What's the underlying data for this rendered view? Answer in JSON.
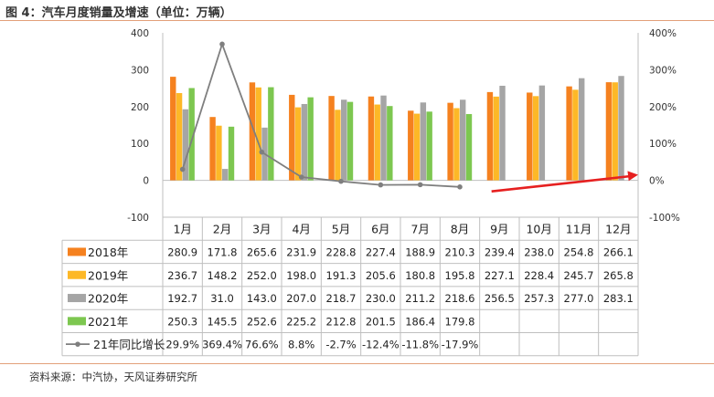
{
  "figure": {
    "title": "图 4：汽车月度销量及增速（单位：万辆）",
    "source": "资料来源：中汽协，天风证券研究所"
  },
  "chart_data": {
    "type": "bar",
    "categories": [
      "1月",
      "2月",
      "3月",
      "4月",
      "5月",
      "6月",
      "7月",
      "8月",
      "9月",
      "10月",
      "11月",
      "12月"
    ],
    "series": [
      {
        "name": "2018年",
        "type": "bar",
        "color": "#f5811f",
        "values": [
          280.9,
          171.8,
          265.6,
          231.9,
          228.8,
          227.4,
          188.9,
          210.3,
          239.4,
          238.0,
          254.8,
          266.1
        ],
        "labels": [
          "280.9",
          "171.8",
          "265.6",
          "231.9",
          "228.8",
          "227.4",
          "188.9",
          "210.3",
          "239.4",
          "238.0",
          "254.8",
          "266.1"
        ]
      },
      {
        "name": "2019年",
        "type": "bar",
        "color": "#fdb827",
        "values": [
          236.7,
          148.2,
          252.0,
          198.0,
          191.3,
          205.6,
          180.8,
          195.8,
          227.1,
          228.4,
          245.7,
          265.8
        ],
        "labels": [
          "236.7",
          "148.2",
          "252.0",
          "198.0",
          "191.3",
          "205.6",
          "180.8",
          "195.8",
          "227.1",
          "228.4",
          "245.7",
          "265.8"
        ]
      },
      {
        "name": "2020年",
        "type": "bar",
        "color": "#a5a5a5",
        "values": [
          192.7,
          31.0,
          143.0,
          207.0,
          218.7,
          230.0,
          211.2,
          218.6,
          256.5,
          257.3,
          277.0,
          283.1
        ],
        "labels": [
          "192.7",
          "31.0",
          "143.0",
          "207.0",
          "218.7",
          "230.0",
          "211.2",
          "218.6",
          "256.5",
          "257.3",
          "277.0",
          "283.1"
        ]
      },
      {
        "name": "2021年",
        "type": "bar",
        "color": "#7dc750",
        "values": [
          250.3,
          145.5,
          252.6,
          225.2,
          212.8,
          201.5,
          186.4,
          179.8,
          null,
          null,
          null,
          null
        ],
        "labels": [
          "250.3",
          "145.5",
          "252.6",
          "225.2",
          "212.8",
          "201.5",
          "186.4",
          "179.8",
          "",
          "",
          "",
          ""
        ]
      },
      {
        "name": "21年同比增长",
        "type": "line",
        "axis": "right",
        "color": "#7f7f7f",
        "values": [
          29.9,
          369.4,
          76.6,
          8.8,
          -2.7,
          -12.4,
          -11.8,
          -17.9,
          null,
          null,
          null,
          null
        ],
        "labels": [
          "29.9%",
          "369.4%",
          "76.6%",
          "8.8%",
          "-2.7%",
          "-12.4%",
          "-11.8%",
          "-17.9%",
          "",
          "",
          "",
          ""
        ]
      }
    ],
    "y_left": {
      "ticks": [
        "-100",
        "0",
        "100",
        "200",
        "300",
        "400"
      ],
      "ylim": [
        -100,
        400
      ]
    },
    "y_right": {
      "ticks": [
        "-100%",
        "0%",
        "100%",
        "200%",
        "300%",
        "400%"
      ],
      "ylim": [
        -100,
        400
      ]
    },
    "annotation": {
      "type": "arrow",
      "color": "#e62020",
      "from": {
        "x": "9月",
        "y": -30
      },
      "to": {
        "x": "12月",
        "y": 15
      }
    },
    "data_table": true,
    "grid": false
  }
}
